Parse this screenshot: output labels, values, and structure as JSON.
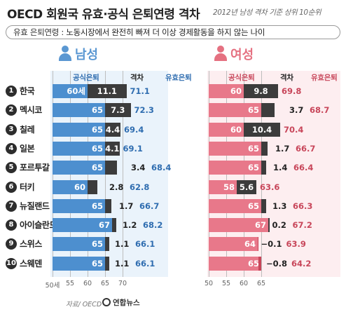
{
  "title": "OECD 회원국 유효·공식 은퇴연령 격차",
  "subtitle": "2012년 남성 격차 기준 상위 10순위",
  "note": {
    "key": "유효 은퇴연령",
    "sep": " : ",
    "text": "노동시장에서 완전히 빠져 더 이상 경제활동을 하지 않는 나이"
  },
  "source": "자료/ OECD",
  "logo_text": "연합뉴스",
  "colors": {
    "male_bar": "#4d8fcf",
    "female_bar": "#e8788a",
    "gap_bar": "#3c3c3c",
    "male_text": "#2f6db0",
    "female_text": "#c8465a",
    "male_bg": "#eaf3fb",
    "female_bg": "#fdeef0"
  },
  "headers": {
    "official": "공식은퇴",
    "gap": "격차",
    "effective": "유효은퇴"
  },
  "chart_data": [
    {
      "type": "bar",
      "title": "남성",
      "units_suffix_first": "세",
      "xlim": [
        50,
        75
      ],
      "ticks": [
        "50세",
        "55",
        "60",
        "65",
        "70"
      ],
      "categories": [
        "한국",
        "멕시코",
        "칠레",
        "일본",
        "포르투갈",
        "터키",
        "뉴질랜드",
        "아이슬란드",
        "스위스",
        "스웨덴"
      ],
      "series": [
        {
          "name": "공식은퇴",
          "values": [
            60,
            65,
            65,
            65,
            65,
            60,
            65,
            67,
            65,
            65
          ]
        },
        {
          "name": "격차",
          "values": [
            11.1,
            7.3,
            4.4,
            4.1,
            3.4,
            2.8,
            1.7,
            1.2,
            1.1,
            1.1
          ]
        },
        {
          "name": "유효은퇴",
          "values": [
            71.1,
            72.3,
            69.4,
            69.1,
            68.4,
            62.8,
            66.7,
            68.2,
            66.1,
            66.1
          ]
        }
      ]
    },
    {
      "type": "bar",
      "title": "여성",
      "xlim": [
        50,
        75
      ],
      "ticks": [
        "50",
        "55",
        "60",
        "65"
      ],
      "categories": [
        "한국",
        "멕시코",
        "칠레",
        "일본",
        "포르투갈",
        "터키",
        "뉴질랜드",
        "아이슬란드",
        "스위스",
        "스웨덴"
      ],
      "series": [
        {
          "name": "공식은퇴",
          "values": [
            60,
            65,
            60,
            65,
            65,
            58,
            65,
            67,
            64,
            65
          ]
        },
        {
          "name": "격차",
          "values": [
            9.8,
            3.7,
            10.4,
            1.7,
            1.4,
            5.6,
            1.3,
            0.2,
            -0.1,
            -0.8
          ]
        },
        {
          "name": "유효은퇴",
          "values": [
            69.8,
            68.7,
            70.4,
            66.7,
            66.4,
            63.6,
            66.3,
            67.2,
            63.9,
            64.2
          ]
        }
      ]
    }
  ]
}
